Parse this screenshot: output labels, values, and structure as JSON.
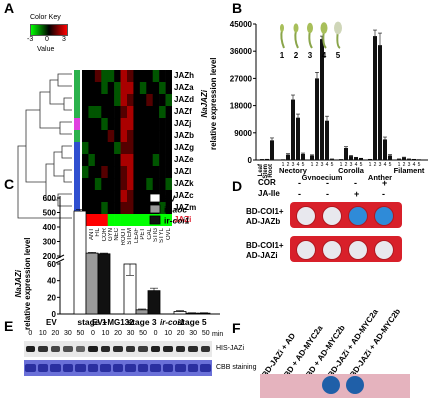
{
  "panels": {
    "A": {
      "letter": "A",
      "color_key_title": "Color Key",
      "color_key_ticks": [
        "-3",
        "0",
        "3"
      ],
      "color_key_label": "Value",
      "genes": [
        "JAZh",
        "JAZa",
        "JAZd",
        "JAZf",
        "JAZj",
        "JAZb",
        "JAZg",
        "JAZe",
        "JAZl",
        "JAZk",
        "JAZc",
        "JAZm",
        "JAZi"
      ],
      "highlight_gene": "JAZi",
      "columns": [
        "OVA",
        "ANT",
        "FIL",
        "COR",
        "GYN",
        "NEC",
        "ROOT",
        "STEM",
        "LEAF",
        "PET",
        "CAL",
        "STIG",
        "STYL",
        "OVL"
      ],
      "side_colors": [
        "#2bb24c",
        "#2bb24c",
        "#2bb24c",
        "#2bb24c",
        "#e040e0",
        "#2bb24c",
        "#3050d0",
        "#3050d0",
        "#3050d0",
        "#3050d0",
        "#3050d0",
        "#3050d0",
        "#e02030"
      ],
      "heatmap": [
        [
          0,
          0,
          1,
          -1,
          -1,
          0,
          2,
          1,
          0,
          0,
          0,
          -1,
          0,
          0
        ],
        [
          0,
          0,
          0,
          -1,
          0,
          -1,
          2,
          2,
          0,
          -1,
          0,
          0,
          -1,
          0
        ],
        [
          0,
          0,
          0,
          0,
          0,
          -1,
          2,
          1,
          0,
          0,
          1,
          0,
          0,
          -1
        ],
        [
          0,
          -1,
          -1,
          0,
          0,
          0,
          1,
          2,
          0,
          0,
          0,
          0,
          -1,
          0
        ],
        [
          0,
          0,
          0,
          -1,
          0,
          0,
          2,
          2,
          0,
          0,
          0,
          0,
          0,
          0
        ],
        [
          0,
          0,
          0,
          0,
          1,
          0,
          2,
          1,
          0,
          0,
          0,
          0,
          0,
          0
        ],
        [
          -1,
          0,
          0,
          0,
          0,
          -1,
          1,
          1,
          0,
          0,
          0,
          0,
          0,
          0
        ],
        [
          0,
          -1,
          0,
          0,
          0,
          0,
          2,
          2,
          0,
          0,
          0,
          -1,
          0,
          0
        ],
        [
          -1,
          0,
          0,
          1,
          0,
          0,
          1,
          2,
          0,
          0,
          0,
          0,
          0,
          0
        ],
        [
          0,
          0,
          -1,
          0,
          0,
          0,
          1,
          2,
          0,
          0,
          -1,
          0,
          0,
          -1
        ],
        [
          0,
          0,
          0,
          0,
          0,
          0,
          2,
          1,
          0,
          0,
          0,
          0,
          0,
          0
        ],
        [
          0,
          0,
          0,
          -1,
          0,
          0,
          1,
          1,
          0,
          0,
          0,
          0,
          -1,
          0
        ],
        [
          3,
          3,
          3,
          3,
          -3,
          -3,
          -3,
          -3,
          -3,
          -3,
          -3,
          -3,
          -3,
          -3
        ]
      ]
    },
    "B": {
      "letter": "B",
      "ylabel_italic": "NaJAZi",
      "ylabel": "relative expression level",
      "stages": [
        "1",
        "2",
        "3",
        "4",
        "5"
      ]
    },
    "C": {
      "letter": "C",
      "ylabel_italic": "NaJAZi",
      "ylabel": "relative expression level",
      "legend": [
        "EV",
        "ir-aoc",
        "ir-coi1"
      ],
      "legend_prefix": [
        "",
        "ir-",
        "ir-"
      ],
      "legend_suffix": [
        "",
        "aoc",
        "coi1"
      ]
    },
    "D": {
      "letter": "D",
      "cond_labels": [
        "COR",
        "JA-Ile"
      ],
      "cond_values": [
        [
          "-",
          "-",
          "-",
          "+"
        ],
        [
          "-",
          "-",
          "+",
          "-"
        ]
      ],
      "row1": "BD-COI1+\nAD-JAZb",
      "row1_a": "BD-COI1+",
      "row1_b": "AD-JAZb",
      "row2_a": "BD-COI1+",
      "row2_b": "AD-JAZi"
    },
    "E": {
      "letter": "E",
      "groups": [
        "EV",
        "EV+MG132",
        "ir-coi1"
      ],
      "times": [
        "0",
        "10",
        "20",
        "30",
        "50",
        "0",
        "10",
        "20",
        "30",
        "50",
        "0",
        "10",
        "20",
        "30",
        "50"
      ],
      "min": "min",
      "blot_label": "HIS-JAZi",
      "stain_label": "CBB staining"
    },
    "F": {
      "letter": "F",
      "labels": [
        "BD-JAZi + AD",
        "BD + AD-MYC2a",
        "BD + AD-MYC2b",
        "BD-JAZi + AD-MYC2a",
        "BD-JAZi + AD-MYC2b"
      ]
    }
  },
  "chart_data": [
    {
      "type": "bar",
      "panel": "B",
      "title": "",
      "ylabel": "NaJAZi relative expression level",
      "ylim": [
        0,
        45000
      ],
      "yticks": [
        0,
        9000,
        18000,
        27000,
        36000,
        45000
      ],
      "categories": [
        "Leaf",
        "Stem",
        "Root",
        "Nectory 1",
        "Nectory 2",
        "Nectory 3",
        "Nectory 4",
        "Nectory 5",
        "Gynoecium 1",
        "Gynoecium 2",
        "Gynoecium 3",
        "Gynoecium 4",
        "Gynoecium 5",
        "Corolla 1",
        "Corolla 2",
        "Corolla 3",
        "Corolla 4",
        "Corolla 5",
        "Anther 1",
        "Anther 2",
        "Anther 3",
        "Anther 4",
        "Anther 5",
        "Filament 1",
        "Filament 2",
        "Filament 3",
        "Filament 4",
        "Filament 5"
      ],
      "groups": [
        "Leaf",
        "Stem",
        "Root",
        "Nectory",
        "Gynoecium",
        "Corolla",
        "Anther",
        "Filament"
      ],
      "values": [
        150,
        200,
        6500,
        100,
        1800,
        20000,
        14000,
        2000,
        1500,
        27000,
        40000,
        13000,
        300,
        150,
        4000,
        1300,
        800,
        500,
        200,
        41000,
        38000,
        6800,
        1500,
        300,
        800,
        300,
        200,
        100
      ],
      "errors": [
        50,
        50,
        800,
        20,
        300,
        1500,
        1200,
        300,
        200,
        2000,
        1000,
        1500,
        50,
        30,
        400,
        200,
        100,
        80,
        40,
        2000,
        4000,
        800,
        300,
        60,
        150,
        60,
        40,
        20
      ]
    },
    {
      "type": "bar",
      "panel": "C",
      "title": "",
      "ylabel": "NaJAZi relative expression level",
      "categories": [
        "stage 1",
        "stage 3",
        "stage 5"
      ],
      "broken_axis": true,
      "yticks": [
        0,
        20,
        40,
        60,
        200,
        300,
        400,
        500,
        600
      ],
      "series": [
        {
          "name": "EV",
          "values": [
            510,
            60,
            3
          ],
          "errors": [
            10,
            6,
            1
          ],
          "color": "#ffffff"
        },
        {
          "name": "ir-aoc",
          "values": [
            220,
            5,
            1
          ],
          "errors": [
            5,
            1,
            0.5
          ],
          "color": "#9a9a9a"
        },
        {
          "name": "ir-coi1",
          "values": [
            215,
            28,
            1
          ],
          "errors": [
            5,
            3,
            0.5
          ],
          "color": "#111111"
        }
      ]
    }
  ]
}
